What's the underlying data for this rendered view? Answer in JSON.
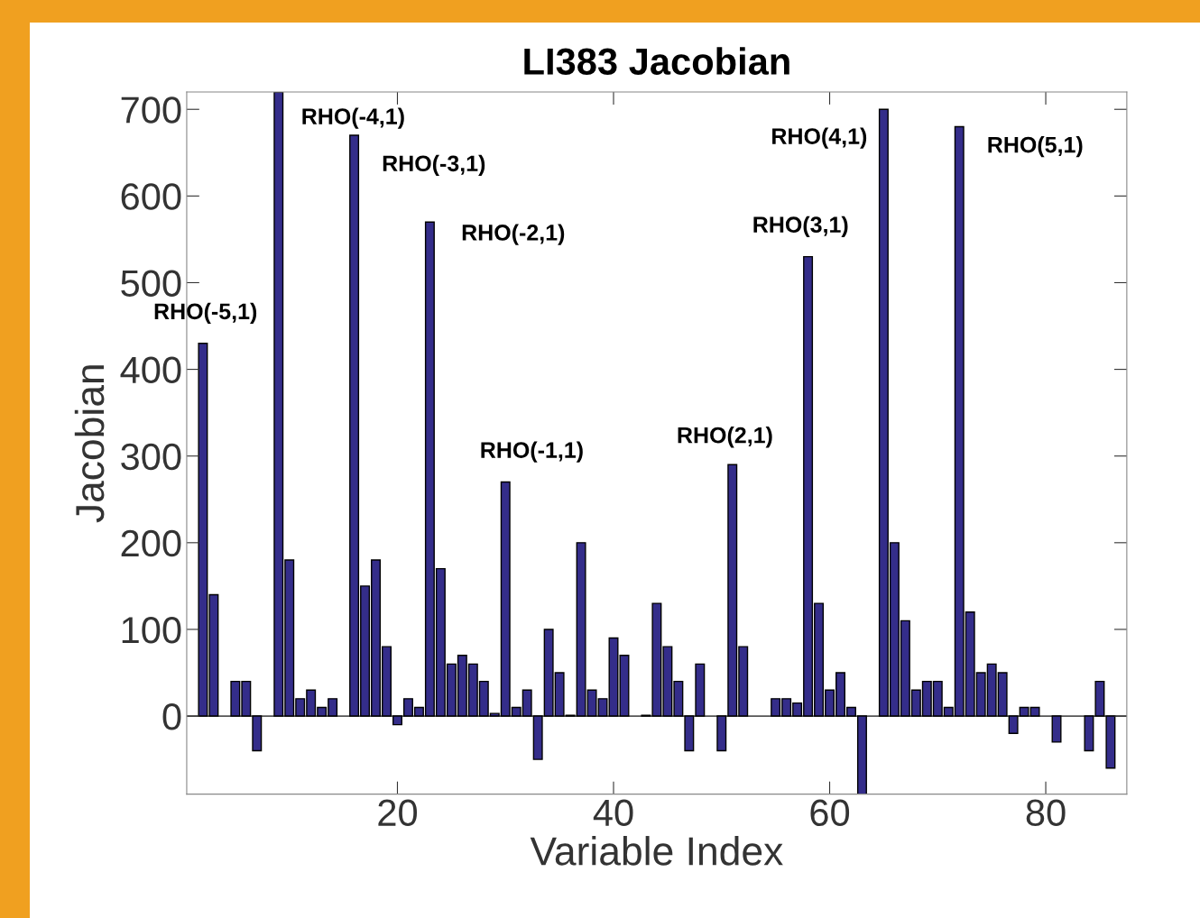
{
  "chart_data": {
    "type": "bar",
    "title": "LI383 Jacobian",
    "xlabel": "Variable Index",
    "ylabel": "Jacobian",
    "x": [
      2,
      3,
      4,
      5,
      6,
      7,
      8,
      9,
      10,
      11,
      12,
      13,
      14,
      15,
      16,
      17,
      18,
      19,
      20,
      21,
      22,
      23,
      24,
      25,
      26,
      27,
      28,
      29,
      30,
      31,
      32,
      33,
      34,
      35,
      36,
      37,
      38,
      39,
      40,
      41,
      42,
      43,
      44,
      45,
      46,
      47,
      48,
      49,
      50,
      51,
      52,
      53,
      54,
      55,
      56,
      57,
      58,
      59,
      60,
      61,
      62,
      63,
      64,
      65,
      66,
      67,
      68,
      69,
      70,
      71,
      72,
      73,
      74,
      75,
      76,
      77,
      78,
      79,
      80,
      81,
      82,
      83,
      84,
      85,
      86
    ],
    "values": [
      430,
      140,
      null,
      40,
      40,
      -40,
      null,
      720,
      180,
      20,
      30,
      10,
      20,
      null,
      670,
      150,
      180,
      80,
      -10,
      20,
      10,
      570,
      170,
      60,
      70,
      60,
      40,
      3,
      270,
      10,
      30,
      -50,
      100,
      50,
      1,
      200,
      30,
      20,
      90,
      70,
      null,
      1,
      130,
      80,
      40,
      -40,
      60,
      null,
      -40,
      290,
      80,
      null,
      null,
      20,
      20,
      15,
      530,
      130,
      30,
      50,
      10,
      -90,
      null,
      700,
      200,
      110,
      30,
      40,
      40,
      10,
      680,
      120,
      50,
      60,
      50,
      -20,
      10,
      10,
      null,
      -30,
      null,
      null,
      -40,
      40,
      -60
    ],
    "ref_lines": [
      {
        "axis": "y",
        "value": 0,
        "color": "#555555"
      }
    ],
    "color": "#342d8a",
    "xlim": [
      0.5,
      87.5
    ],
    "ylim": [
      -90,
      720
    ],
    "xticks": [
      20,
      40,
      60,
      80
    ],
    "yticks": [
      0,
      100,
      200,
      300,
      400,
      500,
      600,
      700
    ],
    "grid": false,
    "annotations": [
      {
        "text": "RHO(-5,1)",
        "x": 2,
        "y": 430
      },
      {
        "text": "RHO(-4,1)",
        "x": 9,
        "y": 720
      },
      {
        "text": "RHO(-3,1)",
        "x": 16,
        "y": 670
      },
      {
        "text": "RHO(-2,1)",
        "x": 23,
        "y": 570
      },
      {
        "text": "RHO(-1,1)",
        "x": 30,
        "y": 270
      },
      {
        "text": "RHO(2,1)",
        "x": 51,
        "y": 290
      },
      {
        "text": "RHO(3,1)",
        "x": 58,
        "y": 530
      },
      {
        "text": "RHO(4,1)",
        "x": 65,
        "y": 700
      },
      {
        "text": "RHO(5,1)",
        "x": 72,
        "y": 680
      }
    ]
  }
}
